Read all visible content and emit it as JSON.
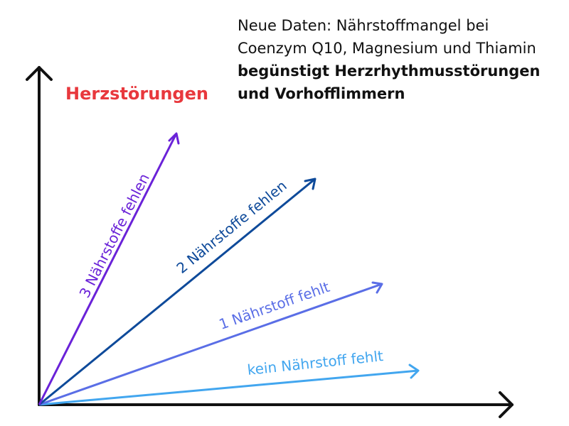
{
  "headline": {
    "line1": "Neue Daten: Nährstoffmangel bei",
    "line2": "Coenzym Q10, Magnesium und Thiamin",
    "line3": "begünstigt Herzrhythmusstörungen",
    "line4": "und Vorhofflimmern"
  },
  "y_axis_label": "Herzstörungen",
  "colors": {
    "axis": "#111111",
    "y_label": "#e8383d",
    "headline": "#111111"
  },
  "series": [
    {
      "name": "kein Nährstoff fehlt",
      "color": "#42a6ef"
    },
    {
      "name": "1 Nährstoff fehlt",
      "color": "#5a6ee6"
    },
    {
      "name": "2 Nährstoffe fehlen",
      "color": "#0e4a9a"
    },
    {
      "name": "3 Nährstoffe fehlen",
      "color": "#6a22d8"
    }
  ]
}
